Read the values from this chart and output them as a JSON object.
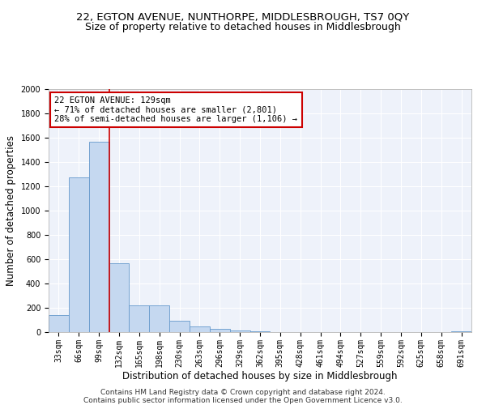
{
  "title": "22, EGTON AVENUE, NUNTHORPE, MIDDLESBROUGH, TS7 0QY",
  "subtitle": "Size of property relative to detached houses in Middlesbrough",
  "xlabel": "Distribution of detached houses by size in Middlesbrough",
  "ylabel": "Number of detached properties",
  "footer_line1": "Contains HM Land Registry data © Crown copyright and database right 2024.",
  "footer_line2": "Contains public sector information licensed under the Open Government Licence v3.0.",
  "bin_labels": [
    "33sqm",
    "66sqm",
    "99sqm",
    "132sqm",
    "165sqm",
    "198sqm",
    "230sqm",
    "263sqm",
    "296sqm",
    "329sqm",
    "362sqm",
    "395sqm",
    "428sqm",
    "461sqm",
    "494sqm",
    "527sqm",
    "559sqm",
    "592sqm",
    "625sqm",
    "658sqm",
    "691sqm"
  ],
  "bar_values": [
    140,
    1275,
    1570,
    565,
    220,
    220,
    95,
    50,
    25,
    15,
    10,
    3,
    0,
    0,
    0,
    0,
    0,
    0,
    0,
    0,
    5
  ],
  "bar_color": "#c5d8f0",
  "bar_edge_color": "#6699cc",
  "vline_x": 3.0,
  "vline_color": "#cc0000",
  "annotation_text": "22 EGTON AVENUE: 129sqm\n← 71% of detached houses are smaller (2,801)\n28% of semi-detached houses are larger (1,106) →",
  "ylim": [
    0,
    2000
  ],
  "yticks": [
    0,
    200,
    400,
    600,
    800,
    1000,
    1200,
    1400,
    1600,
    1800,
    2000
  ],
  "bg_color": "#eef2fa",
  "title_fontsize": 9.5,
  "subtitle_fontsize": 9,
  "axis_label_fontsize": 8.5,
  "tick_fontsize": 7,
  "footer_fontsize": 6.5
}
